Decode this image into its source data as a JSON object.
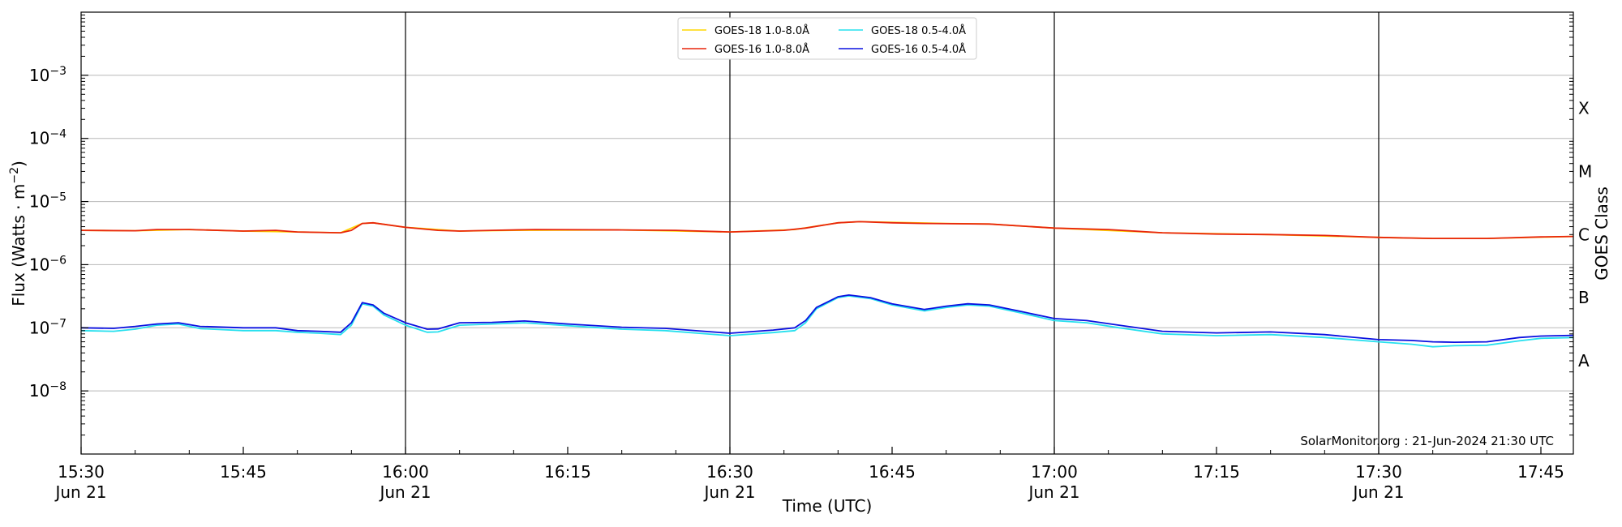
{
  "chart_data": {
    "type": "line",
    "title": "",
    "xlabel": "Time (UTC)",
    "ylabel_prefix": "Flux (Watts · m",
    "ylabel_exponent": "−2",
    "ylabel_suffix": ")",
    "right_label": "GOES Class",
    "x_range": [
      "15:30",
      "17:48"
    ],
    "y_scale": "log",
    "ylim": [
      1e-09,
      0.01
    ],
    "grid": "horizontal",
    "legend_position": "top-center",
    "credit": "SolarMonitor.org : 21-Jun-2024 21:30 UTC",
    "x_ticks": [
      {
        "time": "15:30",
        "line1": "15:30",
        "line2": "Jun 21"
      },
      {
        "time": "15:45",
        "line1": "15:45",
        "line2": ""
      },
      {
        "time": "16:00",
        "line1": "16:00",
        "line2": "Jun 21"
      },
      {
        "time": "16:15",
        "line1": "16:15",
        "line2": ""
      },
      {
        "time": "16:30",
        "line1": "16:30",
        "line2": "Jun 21"
      },
      {
        "time": "16:45",
        "line1": "16:45",
        "line2": ""
      },
      {
        "time": "17:00",
        "line1": "17:00",
        "line2": "Jun 21"
      },
      {
        "time": "17:15",
        "line1": "17:15",
        "line2": ""
      },
      {
        "time": "17:30",
        "line1": "17:30",
        "line2": "Jun 21"
      },
      {
        "time": "17:45",
        "line1": "17:45",
        "line2": ""
      }
    ],
    "vertical_lines": [
      "16:00",
      "16:30",
      "17:00",
      "17:30"
    ],
    "y_ticks": [
      {
        "exp": -3,
        "label": "10",
        "sup": "−3"
      },
      {
        "exp": -4,
        "label": "10",
        "sup": "−4"
      },
      {
        "exp": -5,
        "label": "10",
        "sup": "−5"
      },
      {
        "exp": -6,
        "label": "10",
        "sup": "−6"
      },
      {
        "exp": -7,
        "label": "10",
        "sup": "−7"
      },
      {
        "exp": -8,
        "label": "10",
        "sup": "−8"
      }
    ],
    "goes_classes": [
      {
        "label": "X",
        "flux": 0.0003
      },
      {
        "label": "M",
        "flux": 3e-05
      },
      {
        "label": "C",
        "flux": 3e-06
      },
      {
        "label": "B",
        "flux": 3e-07
      },
      {
        "label": "A",
        "flux": 3e-08
      }
    ],
    "series": [
      {
        "name": "GOES-18 1.0-8.0Å",
        "color": "#ffd700",
        "points": [
          [
            "15:30",
            3.5e-06
          ],
          [
            "15:35",
            3.45e-06
          ],
          [
            "15:40",
            3.6e-06
          ],
          [
            "15:45",
            3.4e-06
          ],
          [
            "15:50",
            3.3e-06
          ],
          [
            "15:54",
            3.2e-06
          ],
          [
            "15:56",
            4.5e-06
          ],
          [
            "15:57",
            4.6e-06
          ],
          [
            "16:00",
            3.9e-06
          ],
          [
            "16:05",
            3.4e-06
          ],
          [
            "16:10",
            3.5e-06
          ],
          [
            "16:20",
            3.55e-06
          ],
          [
            "16:30",
            3.3e-06
          ],
          [
            "16:36",
            3.6e-06
          ],
          [
            "16:40",
            4.6e-06
          ],
          [
            "16:42",
            4.8e-06
          ],
          [
            "16:50",
            4.5e-06
          ],
          [
            "16:54",
            4.4e-06
          ],
          [
            "17:00",
            3.8e-06
          ],
          [
            "17:10",
            3.2e-06
          ],
          [
            "17:20",
            3e-06
          ],
          [
            "17:30",
            2.7e-06
          ],
          [
            "17:35",
            2.6e-06
          ],
          [
            "17:40",
            2.6e-06
          ],
          [
            "17:48",
            2.8e-06
          ]
        ]
      },
      {
        "name": "GOES-16 1.0-8.0Å",
        "color": "#e8250c",
        "points": [
          [
            "15:30",
            3.5e-06
          ],
          [
            "15:35",
            3.45e-06
          ],
          [
            "15:37",
            3.6e-06
          ],
          [
            "15:40",
            3.6e-06
          ],
          [
            "15:45",
            3.4e-06
          ],
          [
            "15:48",
            3.5e-06
          ],
          [
            "15:50",
            3.3e-06
          ],
          [
            "15:54",
            3.2e-06
          ],
          [
            "15:55",
            3.5e-06
          ],
          [
            "15:56",
            4.5e-06
          ],
          [
            "15:57",
            4.6e-06
          ],
          [
            "16:00",
            3.9e-06
          ],
          [
            "16:03",
            3.5e-06
          ],
          [
            "16:05",
            3.4e-06
          ],
          [
            "16:08",
            3.5e-06
          ],
          [
            "16:12",
            3.6e-06
          ],
          [
            "16:20",
            3.55e-06
          ],
          [
            "16:25",
            3.5e-06
          ],
          [
            "16:30",
            3.3e-06
          ],
          [
            "16:35",
            3.5e-06
          ],
          [
            "16:37",
            3.8e-06
          ],
          [
            "16:40",
            4.6e-06
          ],
          [
            "16:42",
            4.8e-06
          ],
          [
            "16:45",
            4.6e-06
          ],
          [
            "16:48",
            4.5e-06
          ],
          [
            "16:54",
            4.4e-06
          ],
          [
            "17:00",
            3.8e-06
          ],
          [
            "17:05",
            3.6e-06
          ],
          [
            "17:10",
            3.2e-06
          ],
          [
            "17:15",
            3.05e-06
          ],
          [
            "17:20",
            3e-06
          ],
          [
            "17:25",
            2.9e-06
          ],
          [
            "17:30",
            2.7e-06
          ],
          [
            "17:35",
            2.6e-06
          ],
          [
            "17:40",
            2.6e-06
          ],
          [
            "17:45",
            2.75e-06
          ],
          [
            "17:48",
            2.8e-06
          ]
        ]
      },
      {
        "name": "GOES-18 0.5-4.0Å",
        "color": "#27e0ee",
        "points": [
          [
            "15:30",
            9e-08
          ],
          [
            "15:33",
            8.8e-08
          ],
          [
            "15:35",
            9.5e-08
          ],
          [
            "15:37",
            1.1e-07
          ],
          [
            "15:39",
            1.15e-07
          ],
          [
            "15:41",
            9.7e-08
          ],
          [
            "15:45",
            9e-08
          ],
          [
            "15:48",
            9e-08
          ],
          [
            "15:50",
            8.5e-08
          ],
          [
            "15:52",
            8.2e-08
          ],
          [
            "15:54",
            7.8e-08
          ],
          [
            "15:55",
            1.1e-07
          ],
          [
            "15:56",
            2.4e-07
          ],
          [
            "15:57",
            2.2e-07
          ],
          [
            "15:58",
            1.6e-07
          ],
          [
            "16:00",
            1.1e-07
          ],
          [
            "16:02",
            8.5e-08
          ],
          [
            "16:03",
            8.6e-08
          ],
          [
            "16:05",
            1.1e-07
          ],
          [
            "16:08",
            1.15e-07
          ],
          [
            "16:11",
            1.2e-07
          ],
          [
            "16:15",
            1.08e-07
          ],
          [
            "16:20",
            9.5e-08
          ],
          [
            "16:24",
            9e-08
          ],
          [
            "16:30",
            7.5e-08
          ],
          [
            "16:34",
            8.4e-08
          ],
          [
            "16:36",
            9e-08
          ],
          [
            "16:37",
            1.2e-07
          ],
          [
            "16:38",
            2e-07
          ],
          [
            "16:40",
            3e-07
          ],
          [
            "16:41",
            3.2e-07
          ],
          [
            "16:43",
            2.9e-07
          ],
          [
            "16:45",
            2.3e-07
          ],
          [
            "16:48",
            1.85e-07
          ],
          [
            "16:50",
            2.1e-07
          ],
          [
            "16:52",
            2.3e-07
          ],
          [
            "16:54",
            2.2e-07
          ],
          [
            "16:57",
            1.7e-07
          ],
          [
            "17:00",
            1.3e-07
          ],
          [
            "17:03",
            1.2e-07
          ],
          [
            "17:06",
            1e-07
          ],
          [
            "17:10",
            8e-08
          ],
          [
            "17:15",
            7.5e-08
          ],
          [
            "17:20",
            7.8e-08
          ],
          [
            "17:25",
            7e-08
          ],
          [
            "17:30",
            6e-08
          ],
          [
            "17:33",
            5.5e-08
          ],
          [
            "17:35",
            5e-08
          ],
          [
            "17:37",
            5.2e-08
          ],
          [
            "17:40",
            5.3e-08
          ],
          [
            "17:43",
            6.2e-08
          ],
          [
            "17:45",
            6.8e-08
          ],
          [
            "17:48",
            7e-08
          ]
        ]
      },
      {
        "name": "GOES-16 0.5-4.0Å",
        "color": "#0a10e0",
        "points": [
          [
            "15:30",
            1e-07
          ],
          [
            "15:33",
            9.8e-08
          ],
          [
            "15:35",
            1.05e-07
          ],
          [
            "15:37",
            1.15e-07
          ],
          [
            "15:39",
            1.2e-07
          ],
          [
            "15:41",
            1.05e-07
          ],
          [
            "15:45",
            1e-07
          ],
          [
            "15:48",
            1e-07
          ],
          [
            "15:50",
            9e-08
          ],
          [
            "15:52",
            8.8e-08
          ],
          [
            "15:54",
            8.5e-08
          ],
          [
            "15:55",
            1.2e-07
          ],
          [
            "15:56",
            2.5e-07
          ],
          [
            "15:57",
            2.3e-07
          ],
          [
            "15:58",
            1.7e-07
          ],
          [
            "16:00",
            1.2e-07
          ],
          [
            "16:02",
            9.5e-08
          ],
          [
            "16:03",
            9.6e-08
          ],
          [
            "16:05",
            1.2e-07
          ],
          [
            "16:08",
            1.22e-07
          ],
          [
            "16:11",
            1.28e-07
          ],
          [
            "16:15",
            1.15e-07
          ],
          [
            "16:20",
            1.02e-07
          ],
          [
            "16:24",
            9.8e-08
          ],
          [
            "16:30",
            8.2e-08
          ],
          [
            "16:34",
            9.2e-08
          ],
          [
            "16:36",
            1e-07
          ],
          [
            "16:37",
            1.3e-07
          ],
          [
            "16:38",
            2.1e-07
          ],
          [
            "16:40",
            3.1e-07
          ],
          [
            "16:41",
            3.3e-07
          ],
          [
            "16:43",
            3e-07
          ],
          [
            "16:45",
            2.4e-07
          ],
          [
            "16:48",
            1.95e-07
          ],
          [
            "16:50",
            2.2e-07
          ],
          [
            "16:52",
            2.4e-07
          ],
          [
            "16:54",
            2.3e-07
          ],
          [
            "16:57",
            1.8e-07
          ],
          [
            "17:00",
            1.4e-07
          ],
          [
            "17:03",
            1.3e-07
          ],
          [
            "17:06",
            1.1e-07
          ],
          [
            "17:10",
            8.8e-08
          ],
          [
            "17:15",
            8.3e-08
          ],
          [
            "17:20",
            8.6e-08
          ],
          [
            "17:25",
            7.8e-08
          ],
          [
            "17:30",
            6.5e-08
          ],
          [
            "17:33",
            6.3e-08
          ],
          [
            "17:35",
            6e-08
          ],
          [
            "17:37",
            5.9e-08
          ],
          [
            "17:40",
            6e-08
          ],
          [
            "17:43",
            7e-08
          ],
          [
            "17:45",
            7.4e-08
          ],
          [
            "17:48",
            7.6e-08
          ]
        ]
      }
    ]
  }
}
